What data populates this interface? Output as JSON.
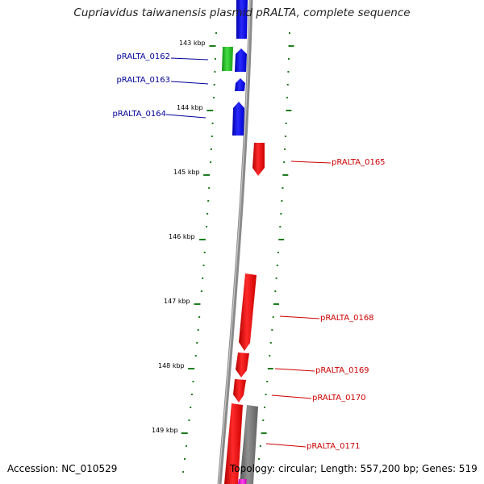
{
  "title": "Cupriavidus taiwanensis plasmid pRALTA, complete sequence",
  "footer": {
    "accession": "Accession: NC_010529",
    "summary": "Topology: circular; Length: 557,200 bp; Genes: 519"
  },
  "kbp_ticks": [
    "143 kbp",
    "144 kbp",
    "145 kbp",
    "146 kbp",
    "147 kbp",
    "148 kbp",
    "149 kbp"
  ],
  "gene_labels_left": [
    "pRALTA_0162",
    "pRALTA_0163",
    "pRALTA_0164"
  ],
  "gene_labels_right": [
    "pRALTA_0165",
    "pRALTA_0168",
    "pRALTA_0169",
    "pRALTA_0170",
    "pRALTA_0171"
  ],
  "colors": {
    "backbone": "#8a8a8a",
    "tick_green": "#1e7d1e",
    "gene_blue": "#0000ee",
    "gene_green": "#22bb22",
    "gene_red": "#ee0000",
    "gene_gray": "#707070",
    "gene_magenta": "#ee11cc",
    "label_left": "#000099",
    "label_right": "#cc0000"
  }
}
